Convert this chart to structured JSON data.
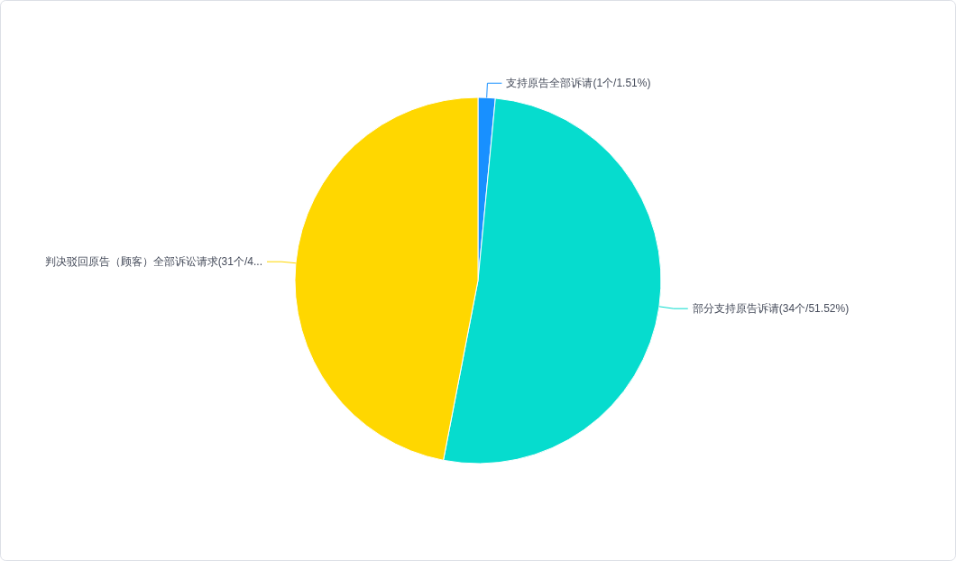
{
  "chart_data": {
    "type": "pie",
    "categories": [
      "支持原告全部诉请(1个/1.51%)",
      "部分支持原告诉请(34个/51.52%)",
      "判决驳回原告（顾客）全部诉讼请求(31个/4..."
    ],
    "values": [
      1,
      34,
      31
    ],
    "colors": [
      "#1890ff",
      "#06dcce",
      "#ffd700"
    ]
  }
}
